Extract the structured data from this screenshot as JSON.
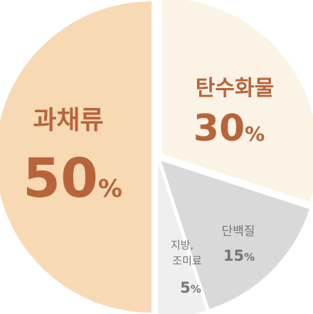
{
  "chart_data": {
    "type": "pie",
    "slices": [
      {
        "label": "탄수화물",
        "value": 30,
        "display": "30",
        "color": "#fbf3e6",
        "text_color": "#b8643b",
        "value_color": "#b8643b"
      },
      {
        "label": "단백질",
        "value": 15,
        "display": "15",
        "color": "#d9d9d9",
        "text_color": "#757575",
        "value_color": "#757575"
      },
      {
        "label_lines": [
          "지방,",
          "조미료"
        ],
        "value": 5,
        "display": "5",
        "color": "#efefef",
        "text_color": "#777777",
        "value_color": "#777777"
      },
      {
        "label": "과채류",
        "value": 50,
        "display": "50",
        "color": "#f7d9b4",
        "text_color": "#b8643b",
        "value_color": "#b8643b"
      }
    ],
    "unit": "%"
  }
}
